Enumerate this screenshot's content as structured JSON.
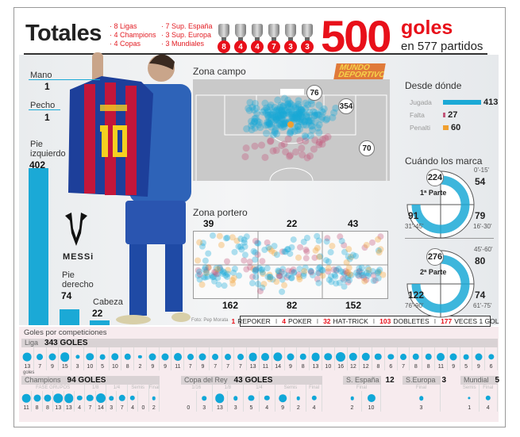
{
  "header": {
    "title": "Totales",
    "titles_left": [
      "8 Ligas",
      "4 Champions",
      "4 Copas"
    ],
    "titles_right": [
      "7 Sup. España",
      "3 Sup. Europa",
      "3 Mundiales"
    ],
    "trophy_counts": [
      "8",
      "4",
      "4",
      "7",
      "3",
      "3"
    ],
    "total_goals": "500",
    "goals_word": "goles",
    "matches": "en 577 partidos"
  },
  "colors": {
    "accent": "#e8101a",
    "blue": "#1ba9d6",
    "falta": "#c2567a",
    "penalti": "#f0a030"
  },
  "body_parts": {
    "mano": {
      "label": "Mano",
      "value": "1"
    },
    "pecho": {
      "label": "Pecho",
      "value": "1"
    },
    "pie_izquierdo": {
      "label": "Pie izquierdo",
      "value": "402"
    },
    "pie_derecho": {
      "label": "Pie derecho",
      "value": "74"
    },
    "cabeza": {
      "label": "Cabeza",
      "value": "22"
    }
  },
  "logo": {
    "brand": "MESSi",
    "newspaper": "MUNDO DEPORTIVO"
  },
  "zona_campo": {
    "title": "Zona campo",
    "area_pequena": "76",
    "area": "354",
    "fuera": "70"
  },
  "zona_portero": {
    "title": "Zona portero",
    "top": [
      "39",
      "22",
      "43"
    ],
    "bottom": [
      "162",
      "82",
      "152"
    ]
  },
  "credit": "Foto: Pep Morata",
  "records": [
    {
      "n": "1",
      "t": "REPOKER"
    },
    {
      "n": "4",
      "t": "POKER"
    },
    {
      "n": "32",
      "t": "HAT-TRICK"
    },
    {
      "n": "103",
      "t": "DOBLETES"
    },
    {
      "n": "177",
      "t": "VECES 1 GOL"
    }
  ],
  "desde_donde": {
    "title": "Desde dónde",
    "rows": [
      {
        "label": "Jugada",
        "value": 413
      },
      {
        "label": "Falta",
        "value": 27
      },
      {
        "label": "Penalti",
        "value": 60
      }
    ]
  },
  "cuando": {
    "title": "Cuándo los marca",
    "halves": [
      {
        "label": "1ª Parte",
        "total": "224",
        "periods": [
          {
            "range": "0'-15'",
            "value": "54"
          },
          {
            "range": "16'-30'",
            "value": "79"
          },
          {
            "range": "31'-45'",
            "value": "91"
          }
        ]
      },
      {
        "label": "2ª Parte",
        "total": "276",
        "periods": [
          {
            "range": "45'-60'",
            "value": "80"
          },
          {
            "range": "61'-75'",
            "value": "74"
          },
          {
            "range": "76'-90'",
            "value": "122"
          }
        ]
      }
    ]
  },
  "competiciones": {
    "title": "Goles por competiciones",
    "goles_unit": "goles",
    "liga": {
      "name": "Liga",
      "total": "343 GOLES",
      "values": [
        13,
        7,
        9,
        15,
        3,
        10,
        5,
        10,
        8,
        2,
        9,
        9,
        11,
        7,
        9,
        7,
        7,
        7,
        13,
        11,
        14,
        9,
        8,
        13,
        10,
        16,
        12,
        12,
        8,
        6,
        7,
        8,
        8,
        11,
        9,
        5,
        9,
        6
      ]
    },
    "champions": {
      "name": "Champions",
      "total": "94 GOLES",
      "rounds": [
        {
          "label": "FASE GRUPOS",
          "values": [
            11,
            8,
            8,
            13,
            13,
            4
          ]
        },
        {
          "label": "1/8",
          "values": [
            7,
            14
          ]
        },
        {
          "label": "1/4",
          "values": [
            3,
            7
          ]
        },
        {
          "label": "Semis",
          "values": [
            4,
            0
          ]
        },
        {
          "label": "Final",
          "values": [
            2
          ]
        }
      ]
    },
    "copa": {
      "name": "Copa del Rey",
      "total": "43 GOLES",
      "rounds": [
        {
          "label": "1/16",
          "values": [
            0,
            3
          ]
        },
        {
          "label": "1/8",
          "values": [
            13,
            3
          ]
        },
        {
          "label": "1/4",
          "values": [
            5,
            4
          ]
        },
        {
          "label": "Semis",
          "values": [
            9,
            2
          ]
        },
        {
          "label": "Final",
          "values": [
            4
          ]
        }
      ]
    },
    "supespana": {
      "name": "S. España",
      "total": "12",
      "rounds": [
        {
          "label": "Final",
          "values": [
            2,
            10
          ]
        }
      ]
    },
    "supeuropa": {
      "name": "S.Europa",
      "total": "3",
      "rounds": [
        {
          "label": "Final",
          "values": [
            3
          ]
        }
      ]
    },
    "mundial": {
      "name": "Mundial",
      "total": "5",
      "rounds": [
        {
          "label": "Semis",
          "values": [
            1
          ]
        },
        {
          "label": "Final",
          "values": [
            4
          ]
        }
      ]
    }
  }
}
